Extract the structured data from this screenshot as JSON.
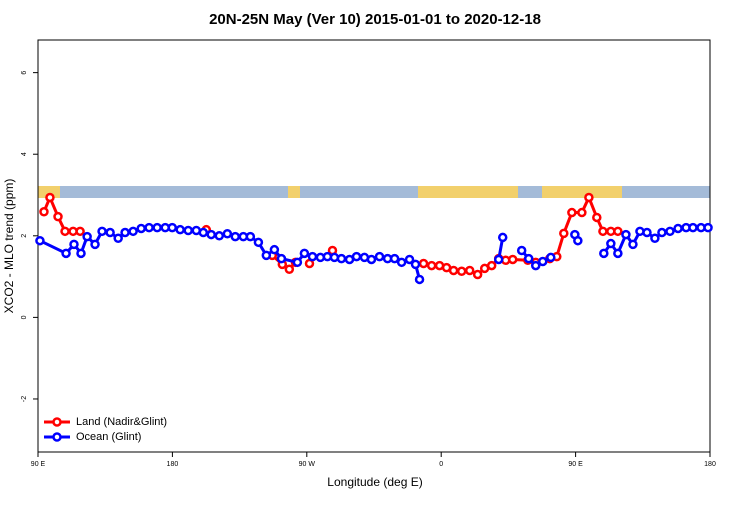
{
  "chart_data": {
    "type": "line",
    "title": "20N-25N May (Ver 10)   2015-01-01 to 2020-12-18",
    "x_label": "Longitude (deg E)",
    "y_label": "XCO2 - MLO trend (ppm)",
    "xlim": [
      90,
      540
    ],
    "ylim": [
      -3.3,
      6.8
    ],
    "xticks": [
      {
        "value": 90,
        "label": "90 E"
      },
      180,
      {
        "value": 270,
        "label": "90 W"
      },
      {
        "value": 360,
        "label": "0"
      },
      {
        "value": 450,
        "label": "90 E"
      },
      {
        "value": 540,
        "label": "180"
      }
    ],
    "yticks": [
      -2,
      0,
      2,
      4,
      6
    ],
    "legend": "bottom-left",
    "series": [
      {
        "name": "Land (Nadir&Glint)",
        "color": "#ff0000",
        "x": [
          94.0,
          98.0,
          103.4,
          108.1,
          113.5,
          118.2,
          null,
          202.7,
          null,
          246.9,
          253.6,
          258.3,
          262.4,
          null,
          271.8,
          null,
          287.2,
          null,
          348.2,
          353.6,
          358.9,
          363.6,
          368.3,
          373.7,
          379.1,
          384.4,
          389.1,
          393.8,
          398.5,
          403.2,
          407.9,
          418.0,
          423.3,
          432.7,
          437.4,
          442.1,
          447.5,
          454.2,
          458.9,
          464.2,
          468.3,
          473.6,
          478.3
        ],
        "values": [
          2.59,
          2.94,
          2.47,
          2.11,
          2.11,
          2.11,
          null,
          2.15,
          null,
          1.52,
          1.3,
          1.18,
          1.35,
          null,
          1.32,
          null,
          1.64,
          null,
          1.32,
          1.27,
          1.27,
          1.22,
          1.15,
          1.13,
          1.15,
          1.05,
          1.2,
          1.27,
          1.44,
          1.4,
          1.42,
          1.4,
          1.35,
          1.44,
          1.49,
          2.06,
          2.57,
          2.57,
          2.94,
          2.45,
          2.11,
          2.11,
          2.11
        ]
      },
      {
        "name": "Ocean (Glint)",
        "color": "#0000ff",
        "x": [
          91.3,
          108.8,
          114.1,
          118.8,
          122.9,
          128.2,
          132.9,
          138.3,
          143.7,
          148.3,
          153.7,
          159.1,
          164.4,
          169.8,
          175.2,
          179.9,
          185.2,
          190.6,
          196.0,
          200.7,
          206.0,
          211.4,
          216.8,
          222.1,
          227.5,
          232.2,
          237.6,
          242.9,
          248.3,
          253.0,
          263.7,
          268.4,
          273.8,
          279.1,
          283.8,
          288.5,
          293.2,
          298.6,
          303.3,
          308.6,
          313.3,
          318.7,
          324.1,
          328.8,
          333.5,
          338.8,
          342.8,
          345.5,
          null,
          398.5,
          401.2,
          null,
          413.9,
          418.6,
          423.3,
          428.0,
          433.4,
          null,
          449.5,
          451.5,
          null,
          468.9,
          473.6,
          478.3,
          483.7,
          488.4,
          493.1,
          497.8,
          503.1,
          507.8,
          513.2,
          518.6,
          524.0,
          528.6,
          534.0,
          538.7
        ],
        "values": [
          1.88,
          1.57,
          1.79,
          1.57,
          1.98,
          1.79,
          2.11,
          2.08,
          1.94,
          2.08,
          2.11,
          2.18,
          2.2,
          2.2,
          2.2,
          2.2,
          2.15,
          2.13,
          2.13,
          2.08,
          2.03,
          2.0,
          2.05,
          1.98,
          1.98,
          1.98,
          1.84,
          1.52,
          1.66,
          1.44,
          1.35,
          1.57,
          1.49,
          1.47,
          1.49,
          1.47,
          1.44,
          1.42,
          1.49,
          1.47,
          1.42,
          1.49,
          1.44,
          1.44,
          1.35,
          1.42,
          1.3,
          0.93,
          null,
          1.42,
          1.96,
          null,
          1.64,
          1.44,
          1.27,
          1.37,
          1.47,
          null,
          2.03,
          1.88,
          null,
          1.57,
          1.81,
          1.57,
          2.03,
          1.79,
          2.11,
          2.08,
          1.94,
          2.08,
          2.11,
          2.18,
          2.2,
          2.2,
          2.2,
          2.2
        ]
      }
    ]
  }
}
